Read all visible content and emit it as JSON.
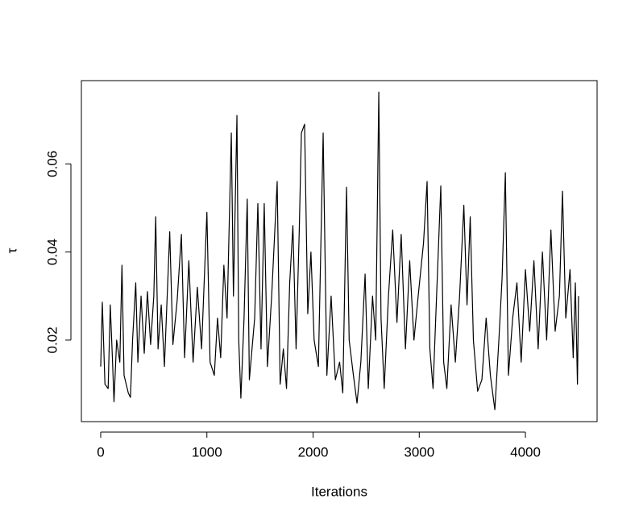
{
  "chart_data": {
    "type": "line",
    "x_label": "Iterations",
    "y_label": "τ",
    "color": "#000000",
    "x": [
      0,
      15,
      40,
      70,
      90,
      110,
      125,
      150,
      180,
      200,
      220,
      260,
      280,
      300,
      330,
      350,
      380,
      410,
      440,
      470,
      500,
      518,
      540,
      570,
      600,
      650,
      680,
      720,
      760,
      790,
      830,
      870,
      910,
      950,
      1000,
      1030,
      1070,
      1100,
      1130,
      1160,
      1190,
      1230,
      1250,
      1283,
      1300,
      1320,
      1350,
      1380,
      1400,
      1450,
      1480,
      1510,
      1540,
      1570,
      1610,
      1662,
      1690,
      1720,
      1750,
      1780,
      1810,
      1840,
      1870,
      1890,
      1920,
      1950,
      1980,
      2010,
      2050,
      2095,
      2130,
      2170,
      2210,
      2250,
      2280,
      2315,
      2340,
      2380,
      2414,
      2450,
      2490,
      2520,
      2560,
      2590,
      2619,
      2640,
      2670,
      2710,
      2750,
      2790,
      2830,
      2870,
      2910,
      2950,
      2990,
      3040,
      3074,
      3100,
      3130,
      3160,
      3203,
      3230,
      3260,
      3300,
      3340,
      3380,
      3420,
      3450,
      3480,
      3510,
      3550,
      3590,
      3630,
      3670,
      3712,
      3750,
      3780,
      3811,
      3840,
      3880,
      3920,
      3960,
      4000,
      4040,
      4080,
      4120,
      4160,
      4200,
      4240,
      4280,
      4320,
      4349,
      4380,
      4420,
      4450,
      4470,
      4490,
      4500
    ],
    "values": [
      0.014,
      0.0286,
      0.01,
      0.009,
      0.028,
      0.016,
      0.006,
      0.02,
      0.015,
      0.037,
      0.012,
      0.008,
      0.007,
      0.02,
      0.033,
      0.015,
      0.03,
      0.017,
      0.031,
      0.019,
      0.03,
      0.048,
      0.018,
      0.028,
      0.014,
      0.0446,
      0.019,
      0.029,
      0.044,
      0.016,
      0.038,
      0.015,
      0.032,
      0.018,
      0.049,
      0.015,
      0.012,
      0.025,
      0.016,
      0.037,
      0.025,
      0.067,
      0.03,
      0.071,
      0.02,
      0.0068,
      0.025,
      0.052,
      0.011,
      0.025,
      0.051,
      0.018,
      0.051,
      0.014,
      0.03,
      0.056,
      0.01,
      0.018,
      0.009,
      0.033,
      0.046,
      0.018,
      0.045,
      0.067,
      0.069,
      0.026,
      0.04,
      0.02,
      0.014,
      0.067,
      0.012,
      0.03,
      0.011,
      0.015,
      0.008,
      0.0547,
      0.02,
      0.012,
      0.0057,
      0.015,
      0.035,
      0.009,
      0.03,
      0.02,
      0.0763,
      0.025,
      0.009,
      0.03,
      0.045,
      0.024,
      0.044,
      0.018,
      0.038,
      0.02,
      0.03,
      0.042,
      0.056,
      0.018,
      0.009,
      0.028,
      0.055,
      0.015,
      0.009,
      0.028,
      0.015,
      0.03,
      0.0506,
      0.028,
      0.048,
      0.02,
      0.0084,
      0.011,
      0.025,
      0.012,
      0.0042,
      0.02,
      0.034,
      0.058,
      0.012,
      0.025,
      0.033,
      0.015,
      0.036,
      0.022,
      0.038,
      0.018,
      0.04,
      0.02,
      0.045,
      0.022,
      0.03,
      0.0538,
      0.025,
      0.036,
      0.016,
      0.033,
      0.01,
      0.03
    ],
    "xlim": [
      -182,
      4675
    ],
    "ylim": [
      0.0015,
      0.0789
    ],
    "xticks": [
      0,
      1000,
      2000,
      3000,
      4000
    ],
    "yticks": [
      0.02,
      0.04,
      0.06
    ]
  }
}
